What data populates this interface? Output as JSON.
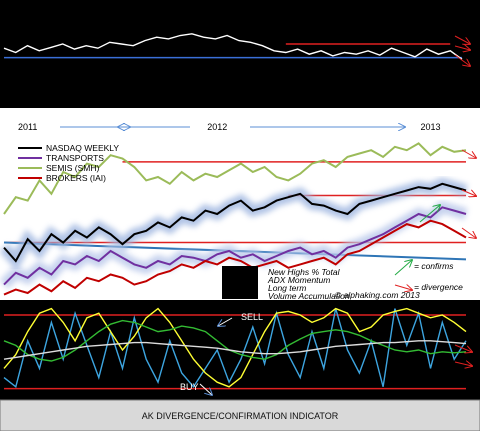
{
  "chart_data": [
    {
      "type": "line",
      "xlim": [
        0,
        39
      ],
      "ylim": [
        0,
        100
      ],
      "x": [
        0,
        1,
        2,
        3,
        4,
        5,
        6,
        7,
        8,
        9,
        10,
        11,
        12,
        13,
        14,
        15,
        16,
        17,
        18,
        19,
        20,
        21,
        22,
        23,
        24,
        25,
        26,
        27,
        28,
        29,
        30,
        31,
        32,
        33,
        34,
        35,
        36,
        37,
        38,
        39
      ],
      "series": [
        {
          "name": null,
          "color": "#ffffff",
          "values": [
            55,
            50,
            58,
            52,
            56,
            60,
            54,
            58,
            55,
            62,
            60,
            58,
            64,
            68,
            66,
            70,
            72,
            68,
            66,
            70,
            64,
            62,
            58,
            52,
            50,
            54,
            48,
            52,
            46,
            50,
            48,
            52,
            47,
            55,
            50,
            45,
            54,
            48,
            52,
            42
          ]
        }
      ],
      "hlines": [
        {
          "value": 44,
          "color": "#3a6fd8",
          "from": 0,
          "to": 39
        },
        {
          "value": 60,
          "color": "#e02020",
          "from": 24,
          "to": 38
        }
      ]
    },
    {
      "type": "line",
      "xlim": [
        0,
        39
      ],
      "ylim": [
        0,
        100
      ],
      "x": [
        0,
        1,
        2,
        3,
        4,
        5,
        6,
        7,
        8,
        9,
        10,
        11,
        12,
        13,
        14,
        15,
        16,
        17,
        18,
        19,
        20,
        21,
        22,
        23,
        24,
        25,
        26,
        27,
        28,
        29,
        30,
        31,
        32,
        33,
        34,
        35,
        36,
        37,
        38,
        39
      ],
      "xticks": [
        {
          "value": 2,
          "label": "2011"
        },
        {
          "value": 18,
          "label": "2012"
        },
        {
          "value": 36,
          "label": "2013"
        }
      ],
      "legend": "top-left",
      "series": [
        {
          "name": "NASDAQ WEEKLY",
          "color": "#000000",
          "glow": "#9fb6e0",
          "values": [
            30,
            22,
            35,
            28,
            38,
            33,
            40,
            36,
            42,
            38,
            32,
            38,
            40,
            45,
            42,
            48,
            46,
            52,
            50,
            55,
            58,
            52,
            54,
            58,
            60,
            62,
            56,
            55,
            52,
            50,
            56,
            58,
            60,
            62,
            64,
            66,
            65,
            68,
            66,
            64
          ]
        },
        {
          "name": "TRANSPORTS",
          "color": "#7030a0",
          "glow": "#b9c8ea",
          "values": [
            8,
            15,
            12,
            18,
            14,
            22,
            20,
            25,
            22,
            28,
            24,
            20,
            18,
            22,
            20,
            25,
            24,
            22,
            26,
            28,
            24,
            26,
            22,
            25,
            28,
            30,
            26,
            28,
            24,
            30,
            32,
            35,
            38,
            42,
            46,
            50,
            48,
            54,
            52,
            50
          ]
        },
        {
          "name": "SEMIS (SMH)",
          "color": "#9bbb59",
          "values": [
            50,
            60,
            58,
            70,
            62,
            75,
            72,
            80,
            78,
            85,
            83,
            78,
            70,
            72,
            68,
            75,
            70,
            74,
            72,
            76,
            80,
            75,
            78,
            72,
            70,
            74,
            80,
            82,
            78,
            84,
            86,
            88,
            84,
            90,
            88,
            92,
            85,
            90,
            87,
            88
          ]
        },
        {
          "name": "BROKERS (IAI)",
          "color": "#c00000",
          "values": [
            2,
            5,
            3,
            8,
            4,
            10,
            6,
            12,
            10,
            14,
            12,
            8,
            10,
            14,
            16,
            20,
            18,
            22,
            20,
            24,
            22,
            18,
            20,
            22,
            18,
            20,
            22,
            24,
            20,
            26,
            28,
            32,
            36,
            40,
            44,
            42,
            46,
            44,
            40,
            36
          ]
        }
      ],
      "hlines": [
        {
          "value": 81,
          "color": "#e02020",
          "from": 10,
          "to": 39
        },
        {
          "value": 61,
          "color": "#e02020",
          "from": 24,
          "to": 39
        },
        {
          "value": 33,
          "color": "#e02020",
          "from": 0,
          "to": 39
        }
      ],
      "trend": {
        "color": "#2e75b6",
        "x": [
          0,
          39
        ],
        "values": [
          33,
          23
        ]
      },
      "annotations": [
        "= confirms",
        "= divergence",
        "© alphaking.com 2013"
      ]
    },
    {
      "type": "line",
      "xlim": [
        0,
        39
      ],
      "ylim": [
        0,
        100
      ],
      "x": [
        0,
        1,
        2,
        3,
        4,
        5,
        6,
        7,
        8,
        9,
        10,
        11,
        12,
        13,
        14,
        15,
        16,
        17,
        18,
        19,
        20,
        21,
        22,
        23,
        24,
        25,
        26,
        27,
        28,
        29,
        30,
        31,
        32,
        33,
        34,
        35,
        36,
        37,
        38,
        39
      ],
      "series": [
        {
          "name": "New Highs % Total",
          "color": "#3da5e0",
          "values": [
            20,
            10,
            60,
            30,
            80,
            40,
            90,
            55,
            20,
            70,
            30,
            85,
            40,
            15,
            60,
            25,
            10,
            30,
            50,
            15,
            40,
            75,
            35,
            90,
            45,
            20,
            70,
            30,
            95,
            50,
            25,
            60,
            10,
            95,
            55,
            90,
            30,
            80,
            40,
            60
          ]
        },
        {
          "name": "ADX Momentum",
          "color": "#ffff33",
          "values": [
            30,
            45,
            70,
            90,
            95,
            80,
            60,
            85,
            90,
            70,
            50,
            65,
            85,
            95,
            80,
            60,
            40,
            25,
            15,
            10,
            20,
            45,
            70,
            90,
            92,
            88,
            80,
            85,
            95,
            90,
            70,
            75,
            88,
            92,
            95,
            90,
            85,
            88,
            80,
            70
          ]
        },
        {
          "name": "Long term",
          "color": "#33bb33",
          "values": [
            60,
            55,
            45,
            40,
            38,
            42,
            50,
            60,
            70,
            78,
            82,
            80,
            75,
            70,
            72,
            76,
            74,
            70,
            60,
            50,
            45,
            42,
            40,
            45,
            55,
            62,
            68,
            70,
            72,
            70,
            66,
            60,
            55,
            50,
            48,
            50,
            46,
            48,
            47,
            48
          ]
        },
        {
          "name": "Volume Accumulation",
          "color": "#dddddd",
          "values": [
            40,
            42,
            44,
            46,
            48,
            50,
            52,
            54,
            55,
            56,
            57,
            58,
            58,
            57,
            56,
            55,
            54,
            53,
            52,
            50,
            48,
            47,
            46,
            46,
            47,
            48,
            50,
            52,
            54,
            55,
            56,
            57,
            58,
            58,
            59,
            60,
            60,
            59,
            58,
            57
          ]
        }
      ],
      "hlines": [
        {
          "value": 88,
          "color": "#e02020",
          "from": 0,
          "to": 39
        },
        {
          "value": 8,
          "color": "#e02020",
          "from": 0,
          "to": 39
        }
      ],
      "annotations": [
        "SELL",
        "BUY"
      ]
    },
    {
      "type": "caption",
      "title": "AK DIVERGENCE/CONFIRMATION INDICATOR"
    }
  ]
}
